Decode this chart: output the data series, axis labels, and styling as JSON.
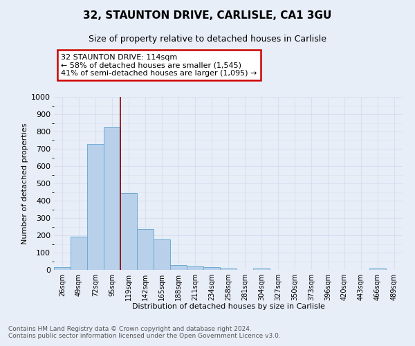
{
  "title1": "32, STAUNTON DRIVE, CARLISLE, CA1 3GU",
  "title2": "Size of property relative to detached houses in Carlisle",
  "xlabel": "Distribution of detached houses by size in Carlisle",
  "ylabel": "Number of detached properties",
  "categories": [
    "26sqm",
    "49sqm",
    "72sqm",
    "95sqm",
    "119sqm",
    "142sqm",
    "165sqm",
    "188sqm",
    "211sqm",
    "234sqm",
    "258sqm",
    "281sqm",
    "304sqm",
    "327sqm",
    "350sqm",
    "373sqm",
    "396sqm",
    "420sqm",
    "443sqm",
    "466sqm",
    "489sqm"
  ],
  "values": [
    15,
    193,
    730,
    825,
    445,
    237,
    175,
    30,
    22,
    17,
    10,
    0,
    8,
    0,
    0,
    0,
    0,
    0,
    0,
    8,
    0
  ],
  "bar_color": "#b8d0ea",
  "bar_edge_color": "#6daad4",
  "vline_x": 3.5,
  "vline_color": "#8b0000",
  "annotation_text": "32 STAUNTON DRIVE: 114sqm\n← 58% of detached houses are smaller (1,545)\n41% of semi-detached houses are larger (1,095) →",
  "annotation_box_color": "#ffffff",
  "annotation_box_edge": "#cc0000",
  "ylim": [
    0,
    1000
  ],
  "yticks": [
    0,
    100,
    200,
    300,
    400,
    500,
    600,
    700,
    800,
    900,
    1000
  ],
  "footnote": "Contains HM Land Registry data © Crown copyright and database right 2024.\nContains public sector information licensed under the Open Government Licence v3.0.",
  "bg_color": "#e8eef8",
  "grid_color": "#d8dff0"
}
